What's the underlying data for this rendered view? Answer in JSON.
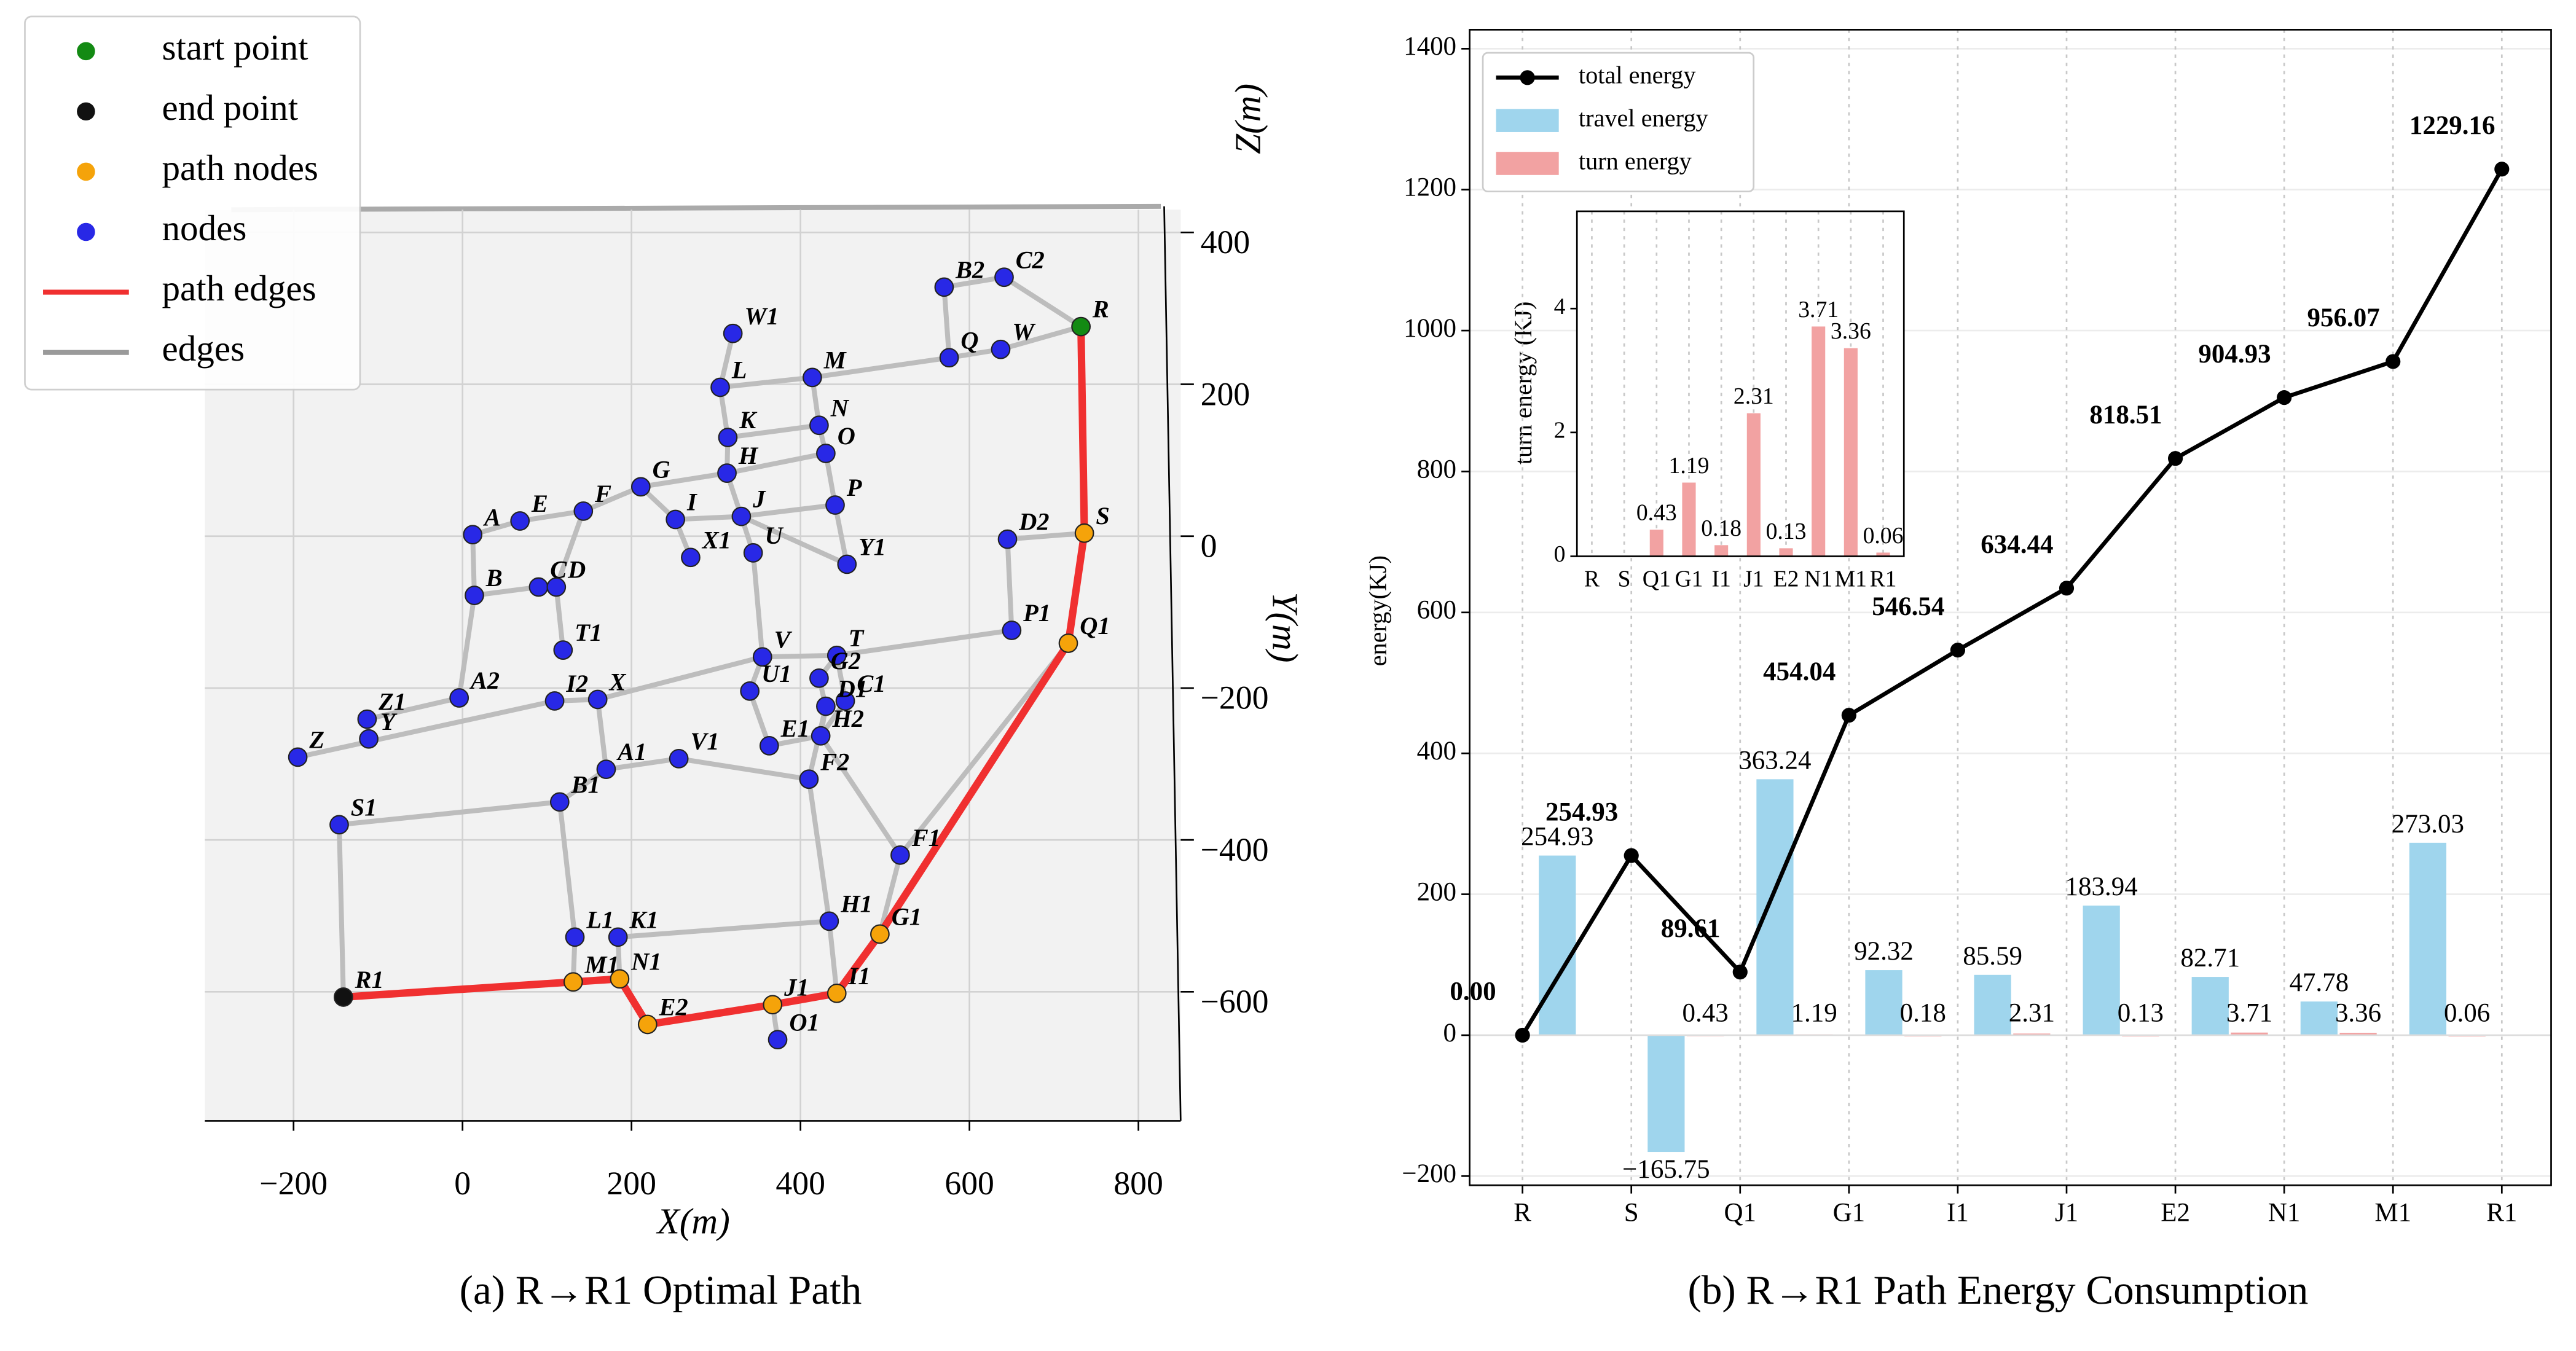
{
  "chart_data": [
    {
      "type": "network",
      "xlabel": "X(m)",
      "ylabel": "Y(m)",
      "zlabel": "Z(m)",
      "caption": "(a) R→R1 Optimal Path",
      "xlim": [
        -305,
        850
      ],
      "ylim": [
        -770,
        430
      ],
      "xticks": [
        {
          "value": -200,
          "label": "−200"
        },
        0,
        200,
        400,
        600,
        800
      ],
      "yticks": [
        400,
        200,
        0,
        {
          "value": -200,
          "label": "−200"
        },
        {
          "value": -400,
          "label": "−400"
        },
        {
          "value": -600,
          "label": "−600"
        }
      ],
      "legend": [
        {
          "name": "start point",
          "color": "#138a13",
          "marker": "circle"
        },
        {
          "name": "end point",
          "color": "#111111",
          "marker": "circle"
        },
        {
          "name": "path nodes",
          "color": "#f5a30a",
          "marker": "circle"
        },
        {
          "name": "nodes",
          "color": "#2828e6",
          "marker": "circle"
        },
        {
          "name": "path edges",
          "color": "#f03030",
          "marker": "line"
        },
        {
          "name": "edges",
          "color": "#9a9a9a",
          "marker": "line"
        }
      ],
      "nodes": [
        {
          "name": "R",
          "x": 732,
          "y": 276
        },
        {
          "name": "S",
          "x": 736,
          "y": 4
        },
        {
          "name": "Q1",
          "x": 717,
          "y": -141
        },
        {
          "name": "D2",
          "x": 645,
          "y": -4
        },
        {
          "name": "P1",
          "x": 650,
          "y": -124
        },
        {
          "name": "C2",
          "x": 641,
          "y": 341
        },
        {
          "name": "B2",
          "x": 570,
          "y": 328
        },
        {
          "name": "Q",
          "x": 576,
          "y": 235
        },
        {
          "name": "W",
          "x": 637,
          "y": 246
        },
        {
          "name": "M",
          "x": 414,
          "y": 209
        },
        {
          "name": "W1",
          "x": 320,
          "y": 267
        },
        {
          "name": "L",
          "x": 305,
          "y": 196
        },
        {
          "name": "N",
          "x": 422,
          "y": 146
        },
        {
          "name": "K",
          "x": 314,
          "y": 130
        },
        {
          "name": "O",
          "x": 430,
          "y": 109
        },
        {
          "name": "H",
          "x": 313,
          "y": 83
        },
        {
          "name": "G",
          "x": 211,
          "y": 65
        },
        {
          "name": "P",
          "x": 441,
          "y": 41
        },
        {
          "name": "I",
          "x": 252,
          "y": 22
        },
        {
          "name": "J",
          "x": 330,
          "y": 26
        },
        {
          "name": "F",
          "x": 143,
          "y": 33
        },
        {
          "name": "E",
          "x": 68,
          "y": 20
        },
        {
          "name": "A",
          "x": 12,
          "y": 2
        },
        {
          "name": "U",
          "x": 344,
          "y": -22
        },
        {
          "name": "X1",
          "x": 270,
          "y": -28
        },
        {
          "name": "Y1",
          "x": 455,
          "y": -37
        },
        {
          "name": "B",
          "x": 14,
          "y": -78
        },
        {
          "name": "C",
          "x": 90,
          "y": -67
        },
        {
          "name": "D",
          "x": 111,
          "y": -67
        },
        {
          "name": "T1",
          "x": 119,
          "y": -150
        },
        {
          "name": "V",
          "x": 355,
          "y": -159
        },
        {
          "name": "T",
          "x": 443,
          "y": -157
        },
        {
          "name": "G2",
          "x": 422,
          "y": -187
        },
        {
          "name": "U1",
          "x": 340,
          "y": -204
        },
        {
          "name": "C1",
          "x": 453,
          "y": -217
        },
        {
          "name": "X",
          "x": 160,
          "y": -215
        },
        {
          "name": "I2",
          "x": 109,
          "y": -217
        },
        {
          "name": "A2",
          "x": -4,
          "y": -213
        },
        {
          "name": "D1",
          "x": 430,
          "y": -224
        },
        {
          "name": "H2",
          "x": 424,
          "y": -263
        },
        {
          "name": "E1",
          "x": 363,
          "y": -276
        },
        {
          "name": "Z1",
          "x": -113,
          "y": -241
        },
        {
          "name": "Y",
          "x": -111,
          "y": -267
        },
        {
          "name": "Z",
          "x": -195,
          "y": -291
        },
        {
          "name": "F2",
          "x": 410,
          "y": -320
        },
        {
          "name": "A1",
          "x": 170,
          "y": -307
        },
        {
          "name": "V1",
          "x": 256,
          "y": -293
        },
        {
          "name": "B1",
          "x": 115,
          "y": -350
        },
        {
          "name": "S1",
          "x": -146,
          "y": -380
        },
        {
          "name": "F1",
          "x": 518,
          "y": -420
        },
        {
          "name": "H1",
          "x": 434,
          "y": -507
        },
        {
          "name": "G1",
          "x": 494,
          "y": -524
        },
        {
          "name": "L1",
          "x": 133,
          "y": -528
        },
        {
          "name": "K1",
          "x": 184,
          "y": -528
        },
        {
          "name": "R1",
          "x": -141,
          "y": -607
        },
        {
          "name": "M1",
          "x": 131,
          "y": -587
        },
        {
          "name": "N1",
          "x": 186,
          "y": -583
        },
        {
          "name": "I1",
          "x": 443,
          "y": -602
        },
        {
          "name": "J1",
          "x": 367,
          "y": -617
        },
        {
          "name": "E2",
          "x": 219,
          "y": -643
        },
        {
          "name": "O1",
          "x": 373,
          "y": -663
        }
      ],
      "edges": [
        [
          "R",
          "W"
        ],
        [
          "W",
          "Q"
        ],
        [
          "Q",
          "B2"
        ],
        [
          "B2",
          "C2"
        ],
        [
          "C2",
          "R"
        ],
        [
          "Q",
          "M"
        ],
        [
          "M",
          "L"
        ],
        [
          "L",
          "W1"
        ],
        [
          "M",
          "N"
        ],
        [
          "L",
          "K"
        ],
        [
          "K",
          "N"
        ],
        [
          "K",
          "H"
        ],
        [
          "H",
          "O"
        ],
        [
          "N",
          "O"
        ],
        [
          "O",
          "P"
        ],
        [
          "P",
          "Y1"
        ],
        [
          "J",
          "P"
        ],
        [
          "I",
          "J"
        ],
        [
          "G",
          "H"
        ],
        [
          "G",
          "I"
        ],
        [
          "G",
          "F"
        ],
        [
          "F",
          "E"
        ],
        [
          "E",
          "A"
        ],
        [
          "A",
          "B"
        ],
        [
          "B",
          "C"
        ],
        [
          "C",
          "D"
        ],
        [
          "D",
          "F"
        ],
        [
          "D",
          "T1"
        ],
        [
          "H",
          "J"
        ],
        [
          "J",
          "U"
        ],
        [
          "J",
          "Y1"
        ],
        [
          "U",
          "V"
        ],
        [
          "X1",
          "I"
        ],
        [
          "B",
          "A2"
        ],
        [
          "A2",
          "Z1"
        ],
        [
          "Z1",
          "Y"
        ],
        [
          "Z",
          "I2"
        ],
        [
          "I2",
          "X"
        ],
        [
          "X",
          "V"
        ],
        [
          "V",
          "T"
        ],
        [
          "T",
          "P1"
        ],
        [
          "D2",
          "P1"
        ],
        [
          "S",
          "D2"
        ],
        [
          "V",
          "U1"
        ],
        [
          "U1",
          "E1"
        ],
        [
          "T",
          "G2"
        ],
        [
          "T",
          "C1"
        ],
        [
          "G2",
          "D1"
        ],
        [
          "D1",
          "H2"
        ],
        [
          "E1",
          "H2"
        ],
        [
          "C1",
          "H2"
        ],
        [
          "H2",
          "F1"
        ],
        [
          "D1",
          "F2"
        ],
        [
          "F2",
          "H1"
        ],
        [
          "A1",
          "V1"
        ],
        [
          "V1",
          "F2"
        ],
        [
          "X",
          "A1"
        ],
        [
          "A1",
          "B1"
        ],
        [
          "B1",
          "S1"
        ],
        [
          "S1",
          "R1"
        ],
        [
          "B1",
          "L1"
        ],
        [
          "L1",
          "M1"
        ],
        [
          "K1",
          "H1"
        ],
        [
          "K1",
          "N1"
        ],
        [
          "H1",
          "I1"
        ],
        [
          "Q1",
          "F1"
        ],
        [
          "F1",
          "G1"
        ],
        [
          "J1",
          "O1"
        ]
      ],
      "path": [
        "R",
        "S",
        "Q1",
        "G1",
        "I1",
        "J1",
        "E2",
        "N1",
        "M1",
        "R1"
      ]
    },
    {
      "type": "combo",
      "caption": "(b) R→R1 Path Energy Consumption",
      "ylabel": "energy(KJ)",
      "categories": [
        "R",
        "S",
        "Q1",
        "G1",
        "I1",
        "J1",
        "E2",
        "N1",
        "M1",
        "R1"
      ],
      "ylim": [
        -213,
        1427
      ],
      "yticks": [
        {
          "value": -200,
          "label": "−200"
        },
        0,
        200,
        400,
        600,
        800,
        1000,
        1200,
        1400
      ],
      "grid": true,
      "legend": "upper left",
      "series": [
        {
          "name": "total energy",
          "kind": "line",
          "color": "#000000",
          "values": [
            0,
            254.93,
            89.61,
            454.04,
            546.54,
            634.44,
            818.51,
            904.93,
            956.07,
            1229.16
          ],
          "value_labels": [
            "0.00",
            "254.93",
            "89.61",
            "454.04",
            "546.54",
            "634.44",
            "818.51",
            "904.93",
            "956.07",
            "1229.16"
          ]
        },
        {
          "name": "travel energy",
          "kind": "bar",
          "color": "#9fd5ed",
          "values": [
            null,
            254.93,
            -165.75,
            363.24,
            92.32,
            85.59,
            183.94,
            82.71,
            47.78,
            273.03
          ],
          "value_labels": [
            null,
            "254.93",
            "−165.75",
            "363.24",
            "92.32",
            "85.59",
            "183.94",
            "82.71",
            "47.78",
            "273.03"
          ]
        },
        {
          "name": "turn energy",
          "kind": "bar",
          "color": "#f2a2a2",
          "values": [
            null,
            null,
            0.43,
            1.19,
            0.18,
            2.31,
            0.13,
            3.71,
            3.36,
            0.06
          ],
          "value_labels": [
            null,
            null,
            "0.43",
            "1.19",
            "0.18",
            "2.31",
            "0.13",
            "3.71",
            "3.36",
            "0.06"
          ]
        }
      ],
      "inset": {
        "ylabel": "turn energy (KJ)",
        "ylim": [
          0,
          5.57
        ],
        "yticks": [
          0,
          2,
          4
        ]
      }
    }
  ]
}
